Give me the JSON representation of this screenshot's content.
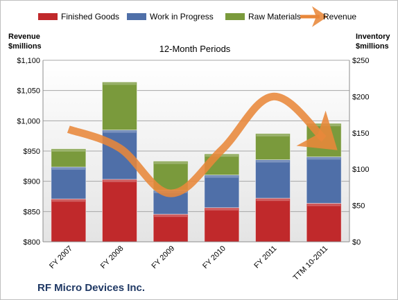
{
  "chart_data": {
    "type": "bar",
    "subtitle": "12-Month Periods",
    "company": "RF Micro Devices Inc.",
    "categories": [
      "FY 2007",
      "FY 2008",
      "FY 2009",
      "FY 2010",
      "FY 2011",
      "TTM 10-2011"
    ],
    "left_axis": {
      "title_line1": "Revenue",
      "title_line2": "$millions",
      "range": [
        800,
        1100
      ],
      "ticks": [
        800,
        850,
        900,
        950,
        1000,
        1050,
        1100
      ],
      "tick_labels": [
        "$800",
        "$850",
        "$900",
        "$950",
        "$1,000",
        "$1,050",
        "$1,100"
      ]
    },
    "right_axis": {
      "title_line1": "Inventory",
      "title_line2": "$millions",
      "range": [
        0,
        250
      ],
      "ticks": [
        0,
        50,
        100,
        150,
        200,
        250
      ],
      "tick_labels": [
        "$0",
        "$50",
        "$100",
        "$150",
        "$200",
        "$250"
      ]
    },
    "stacked_series": [
      {
        "name": "Finished Goods",
        "axis": "right",
        "color": "#c0292b",
        "values": [
          59,
          86,
          38,
          47,
          60,
          53
        ]
      },
      {
        "name": "Work in Progress",
        "axis": "right",
        "color": "#4f6fa8",
        "values": [
          44,
          68,
          33,
          45,
          53,
          64
        ]
      },
      {
        "name": "Raw Materials",
        "axis": "right",
        "color": "#7a9a3c",
        "values": [
          25,
          66,
          40,
          29,
          36,
          46
        ]
      }
    ],
    "line_series": {
      "name": "Revenue",
      "axis": "left",
      "color": "#e8873a",
      "values": [
        986,
        955,
        880,
        952,
        1040,
        970
      ]
    },
    "grid": true,
    "legend_position": "top"
  }
}
